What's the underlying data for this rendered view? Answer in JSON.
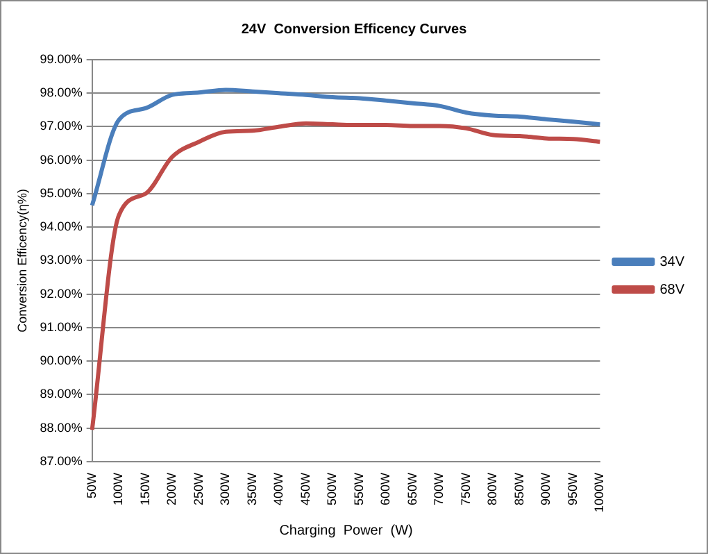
{
  "chart_data": {
    "type": "line",
    "title": "24V  Conversion Efficency Curves",
    "xlabel": "Charging  Power  (W)",
    "ylabel": "Conversion Efficency(η%)",
    "categories": [
      "50W",
      "100W",
      "150W",
      "200W",
      "250W",
      "300W",
      "350W",
      "400W",
      "450W",
      "500W",
      "550W",
      "600W",
      "650W",
      "700W",
      "750W",
      "800W",
      "850W",
      "900W",
      "950W",
      "1000W"
    ],
    "series": [
      {
        "name": "34V",
        "color": "#4a7ebb",
        "values": [
          94.65,
          97.2,
          97.55,
          97.95,
          98.02,
          98.1,
          98.05,
          98.0,
          97.95,
          97.88,
          97.85,
          97.78,
          97.7,
          97.62,
          97.42,
          97.33,
          97.3,
          97.22,
          97.15,
          97.07
        ]
      },
      {
        "name": "68V",
        "color": "#be4b48",
        "values": [
          87.95,
          94.35,
          95.0,
          96.1,
          96.55,
          96.85,
          96.88,
          97.0,
          97.1,
          97.07,
          97.05,
          97.05,
          97.02,
          97.02,
          96.95,
          96.75,
          96.72,
          96.65,
          96.63,
          96.55
        ]
      }
    ],
    "ylim": [
      87,
      99
    ],
    "yticks": [
      {
        "value": 87,
        "label": "87.00%"
      },
      {
        "value": 88,
        "label": "88.00%"
      },
      {
        "value": 89,
        "label": "89.00%"
      },
      {
        "value": 90,
        "label": "90.00%"
      },
      {
        "value": 91,
        "label": "91.00%"
      },
      {
        "value": 92,
        "label": "92.00%"
      },
      {
        "value": 93,
        "label": "93.00%"
      },
      {
        "value": 94,
        "label": "94.00%"
      },
      {
        "value": 95,
        "label": "95.00%"
      },
      {
        "value": 96,
        "label": "96.00%"
      },
      {
        "value": 97,
        "label": "97.00%"
      },
      {
        "value": 98,
        "label": "98.00%"
      },
      {
        "value": 99,
        "label": "99.00%"
      }
    ],
    "grid": "y",
    "legend": "right",
    "marker": "none",
    "line_style": "solid"
  }
}
